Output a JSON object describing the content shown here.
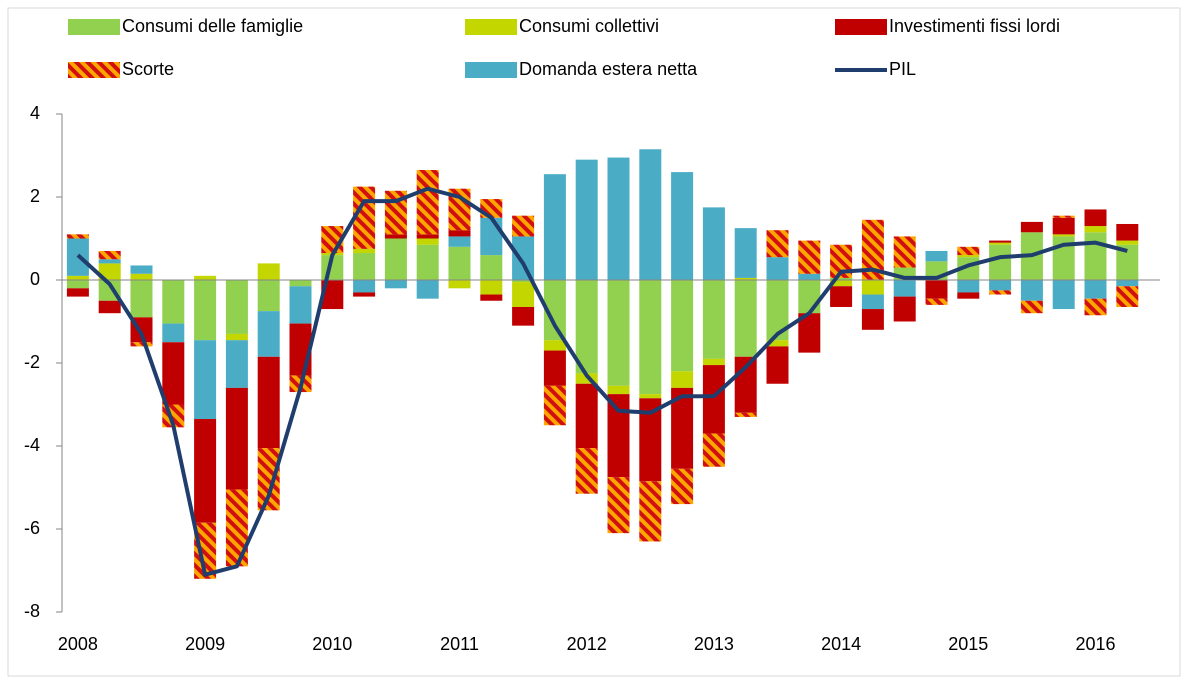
{
  "chart_data": {
    "type": "stacked_bar_line",
    "categories": [
      "2008",
      null,
      null,
      null,
      "2009",
      null,
      null,
      null,
      "2010",
      null,
      null,
      null,
      "2011",
      null,
      null,
      null,
      "2012",
      null,
      null,
      null,
      "2013",
      null,
      null,
      null,
      "2014",
      null,
      null,
      null,
      "2015",
      null,
      null,
      null,
      "2016",
      null
    ],
    "series": [
      {
        "name": "Consumi delle famiglie",
        "type": "bar",
        "color": "#92d050",
        "values": [
          -0.2,
          -0.5,
          -0.9,
          -1.05,
          -1.45,
          -1.3,
          -0.75,
          -0.15,
          0.6,
          0.65,
          1.0,
          0.85,
          0.8,
          0.6,
          -0.05,
          -1.45,
          -2.25,
          -2.55,
          -2.75,
          -2.2,
          -1.9,
          -1.85,
          -1.45,
          -0.8,
          0.05,
          0,
          0.3,
          0.45,
          0.55,
          0.85,
          1.15,
          1.05,
          1.15,
          0.85
        ]
      },
      {
        "name": "Consumi collettivi",
        "type": "bar",
        "color": "#c3d600",
        "values": [
          0.1,
          0.4,
          0.15,
          0,
          0.1,
          -0.15,
          0.4,
          0,
          0.05,
          0.1,
          0,
          0.15,
          -0.2,
          -0.35,
          -0.6,
          -0.25,
          -0.25,
          -0.2,
          -0.1,
          -0.4,
          -0.15,
          0.05,
          -0.15,
          0,
          -0.15,
          -0.35,
          0,
          0,
          0.05,
          0.05,
          0,
          0.05,
          0.15,
          0.1
        ]
      },
      {
        "name": "Investimenti fissi lordi",
        "type": "bar",
        "color": "#c00000",
        "values": [
          -0.2,
          -0.3,
          -0.6,
          -1.5,
          -2.5,
          -2.45,
          -2.2,
          -1.25,
          -0.7,
          -0.1,
          0.1,
          0.1,
          0.15,
          -0.15,
          -0.45,
          -0.85,
          -1.55,
          -2.0,
          -2.0,
          -1.95,
          -1.65,
          -1.35,
          -0.9,
          -0.95,
          -0.5,
          -0.5,
          -0.6,
          -0.45,
          -0.15,
          0.05,
          0.25,
          0.4,
          0.4,
          0.4
        ]
      },
      {
        "name": "Scorte",
        "type": "bar",
        "color": "#ffa500",
        "hatch_color": "#d01010",
        "values": [
          0.1,
          0.2,
          -0.1,
          -0.55,
          -1.35,
          -1.85,
          -1.5,
          -0.4,
          0.65,
          1.5,
          1.05,
          1.55,
          1.0,
          0.45,
          0.5,
          -0.95,
          -1.1,
          -1.35,
          -1.45,
          -0.85,
          -0.8,
          -0.1,
          0.65,
          0.8,
          0.8,
          1.45,
          0.75,
          -0.15,
          0.2,
          -0.1,
          -0.3,
          0.05,
          -0.4,
          -0.5
        ]
      },
      {
        "name": "Domanda estera netta",
        "type": "bar",
        "color": "#4bacc6",
        "values": [
          0.9,
          0.1,
          0.2,
          -0.45,
          -1.9,
          -1.15,
          -1.1,
          -0.9,
          0,
          -0.3,
          -0.2,
          -0.45,
          0.25,
          0.9,
          1.05,
          2.55,
          2.9,
          2.95,
          3.15,
          2.6,
          1.75,
          1.2,
          0.55,
          0.15,
          0,
          -0.35,
          -0.4,
          0.25,
          -0.3,
          -0.25,
          -0.5,
          -0.7,
          -0.45,
          -0.15
        ]
      },
      {
        "name": "PIL",
        "type": "line",
        "color": "#1f3e6e",
        "values": [
          0.6,
          -0.1,
          -1.3,
          -3.5,
          -7.1,
          -6.9,
          -5.2,
          -2.6,
          0.6,
          1.9,
          1.9,
          2.2,
          2.0,
          1.5,
          0.4,
          -1.1,
          -2.3,
          -3.15,
          -3.2,
          -2.8,
          -2.8,
          -2.1,
          -1.3,
          -0.8,
          0.2,
          0.25,
          0.05,
          0.05,
          0.35,
          0.55,
          0.6,
          0.85,
          0.9,
          0.7
        ]
      }
    ],
    "ylim": [
      -8,
      4
    ],
    "yticks": [
      -8,
      -6,
      -4,
      -2,
      0,
      2,
      4
    ],
    "grid": false,
    "legend": "top"
  }
}
